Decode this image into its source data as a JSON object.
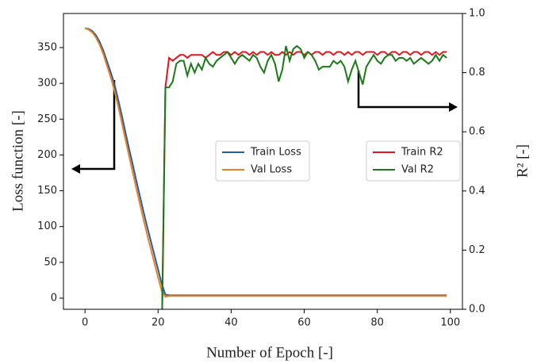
{
  "chart_data": {
    "type": "line",
    "xlabel": "Number of Epoch [-]",
    "ylabel": "Loss function [-]",
    "y2label": "R² [-]",
    "x": [
      0,
      1,
      2,
      3,
      4,
      5,
      6,
      7,
      8,
      9,
      10,
      11,
      12,
      13,
      14,
      15,
      16,
      17,
      18,
      19,
      20,
      21,
      22,
      23,
      24,
      25,
      26,
      27,
      28,
      29,
      30,
      31,
      32,
      33,
      34,
      35,
      36,
      37,
      38,
      39,
      40,
      41,
      42,
      43,
      44,
      45,
      46,
      47,
      48,
      49,
      50,
      51,
      52,
      53,
      54,
      55,
      56,
      57,
      58,
      59,
      60,
      61,
      62,
      63,
      64,
      65,
      66,
      67,
      68,
      69,
      70,
      71,
      72,
      73,
      74,
      75,
      76,
      77,
      78,
      79,
      80,
      81,
      82,
      83,
      84,
      85,
      86,
      87,
      88,
      89,
      90,
      91,
      92,
      93,
      94,
      95,
      96,
      97,
      98,
      99
    ],
    "series": [
      {
        "name": "Train Loss",
        "color": "#1f5fa8",
        "axis": "y",
        "values": [
          377,
          376,
          373,
          367,
          358,
          346,
          331,
          316,
          300,
          279,
          257,
          233,
          210,
          188,
          165,
          143,
          121,
          100,
          80,
          60,
          40,
          20,
          5,
          4,
          4,
          4,
          4,
          4,
          4,
          4,
          4,
          4,
          4,
          4,
          4,
          4,
          4,
          4,
          4,
          4,
          4,
          4,
          4,
          4,
          4,
          4,
          4,
          4,
          4,
          4,
          4,
          4,
          4,
          4,
          4,
          4,
          4,
          4,
          4,
          4,
          4,
          4,
          4,
          4,
          4,
          4,
          4,
          4,
          4,
          4,
          4,
          4,
          4,
          4,
          4,
          4,
          4,
          4,
          4,
          4,
          4,
          4,
          4,
          4,
          4,
          4,
          4,
          4,
          4,
          4,
          4,
          4,
          4,
          4,
          4,
          4,
          4,
          4,
          4,
          4
        ]
      },
      {
        "name": "Val Loss",
        "color": "#f07f1e",
        "axis": "y",
        "values": [
          377,
          375,
          371,
          364,
          354,
          341,
          325,
          309,
          291,
          270,
          247,
          223,
          200,
          177,
          154,
          132,
          110,
          89,
          69,
          49,
          29,
          10,
          2,
          3,
          3,
          3,
          3,
          3,
          3,
          3,
          3,
          3,
          3,
          3,
          3,
          3,
          3,
          3,
          3,
          3,
          3,
          3,
          3,
          3,
          3,
          3,
          3,
          3,
          3,
          3,
          3,
          3,
          3,
          3,
          3,
          3,
          3,
          3,
          3,
          3,
          3,
          3,
          3,
          3,
          3,
          3,
          3,
          3,
          3,
          3,
          3,
          3,
          3,
          3,
          3,
          3,
          3,
          3,
          3,
          3,
          3,
          3,
          3,
          3,
          3,
          3,
          3,
          3,
          3,
          3,
          3,
          3,
          3,
          3,
          3,
          3,
          3,
          3,
          3,
          3
        ]
      },
      {
        "name": "Train R2",
        "color": "#e8141b",
        "axis": "y2",
        "values": [
          null,
          null,
          null,
          null,
          null,
          null,
          null,
          null,
          null,
          null,
          null,
          null,
          null,
          null,
          null,
          null,
          null,
          null,
          null,
          null,
          null,
          -0.1,
          0.75,
          0.85,
          0.84,
          0.85,
          0.86,
          0.86,
          0.85,
          0.86,
          0.86,
          0.86,
          0.86,
          0.85,
          0.86,
          0.87,
          0.86,
          0.86,
          0.87,
          0.87,
          0.86,
          0.87,
          0.86,
          0.87,
          0.87,
          0.86,
          0.87,
          0.86,
          0.87,
          0.87,
          0.86,
          0.87,
          0.86,
          0.86,
          0.87,
          0.86,
          0.87,
          0.86,
          0.87,
          0.87,
          0.86,
          0.87,
          0.86,
          0.87,
          0.87,
          0.86,
          0.87,
          0.87,
          0.86,
          0.87,
          0.87,
          0.86,
          0.87,
          0.86,
          0.87,
          0.87,
          0.86,
          0.87,
          0.87,
          0.87,
          0.86,
          0.87,
          0.87,
          0.86,
          0.87,
          0.87,
          0.86,
          0.87,
          0.87,
          0.86,
          0.87,
          0.87,
          0.86,
          0.87,
          0.87,
          0.86,
          0.87,
          0.86,
          0.87,
          0.87
        ]
      },
      {
        "name": "Val R2",
        "color": "#1a7a17",
        "axis": "y2",
        "values": [
          null,
          null,
          null,
          null,
          null,
          null,
          null,
          null,
          null,
          null,
          null,
          null,
          null,
          null,
          null,
          null,
          null,
          null,
          null,
          null,
          null,
          -0.1,
          0.75,
          0.75,
          0.77,
          0.83,
          0.84,
          0.84,
          0.79,
          0.83,
          0.8,
          0.83,
          0.81,
          0.85,
          0.83,
          0.82,
          0.84,
          0.85,
          0.86,
          0.87,
          0.85,
          0.83,
          0.85,
          0.86,
          0.85,
          0.84,
          0.86,
          0.85,
          0.82,
          0.8,
          0.84,
          0.86,
          0.83,
          0.77,
          0.81,
          0.89,
          0.84,
          0.88,
          0.89,
          0.88,
          0.85,
          0.87,
          0.86,
          0.84,
          0.81,
          0.82,
          0.82,
          0.82,
          0.84,
          0.83,
          0.84,
          0.82,
          0.77,
          0.81,
          0.84,
          0.8,
          0.76,
          0.82,
          0.84,
          0.86,
          0.84,
          0.83,
          0.85,
          0.86,
          0.86,
          0.84,
          0.85,
          0.85,
          0.84,
          0.85,
          0.83,
          0.84,
          0.85,
          0.84,
          0.83,
          0.84,
          0.86,
          0.84,
          0.86,
          0.85
        ]
      }
    ],
    "xlim": [
      -5.9,
      103.3
    ],
    "xticks": [
      0,
      20,
      40,
      60,
      80,
      100
    ],
    "ylim": [
      -15.5,
      397.6
    ],
    "yticks": [
      0,
      50,
      100,
      150,
      200,
      250,
      300,
      350
    ],
    "y2lim": [
      0,
      1
    ],
    "y2ticks": [
      {
        "value": 0,
        "label": "0.0"
      },
      {
        "value": 0.2,
        "label": "0.2"
      },
      {
        "value": 0.4,
        "label": "0.4"
      },
      {
        "value": 0.6,
        "label": "0.6"
      },
      {
        "value": 0.8,
        "label": "0.8"
      },
      {
        "value": 1,
        "label": "1.0"
      }
    ]
  }
}
